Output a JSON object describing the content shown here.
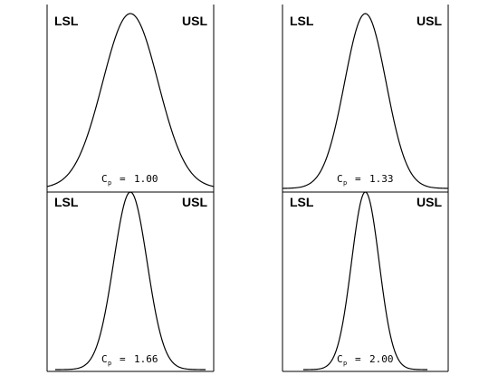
{
  "chart_data": [
    {
      "type": "line",
      "left_label": "LSL",
      "right_label": "USL",
      "annotation": {
        "symbol": "C",
        "subscript": "p",
        "equals": "=",
        "value": "1.00"
      },
      "cp": 1.0,
      "xlim": [
        -3,
        3
      ]
    },
    {
      "type": "line",
      "left_label": "LSL",
      "right_label": "USL",
      "annotation": {
        "symbol": "C",
        "subscript": "p",
        "equals": "=",
        "value": "1.33"
      },
      "cp": 1.33,
      "xlim": [
        -3,
        3
      ]
    },
    {
      "type": "line",
      "left_label": "LSL",
      "right_label": "USL",
      "annotation": {
        "symbol": "C",
        "subscript": "p",
        "equals": "=",
        "value": "1.66"
      },
      "cp": 1.66,
      "xlim": [
        -3,
        3
      ]
    },
    {
      "type": "line",
      "left_label": "LSL",
      "right_label": "USL",
      "annotation": {
        "symbol": "C",
        "subscript": "p",
        "equals": "=",
        "value": "2.00"
      },
      "cp": 2.0,
      "xlim": [
        -3,
        3
      ]
    }
  ]
}
